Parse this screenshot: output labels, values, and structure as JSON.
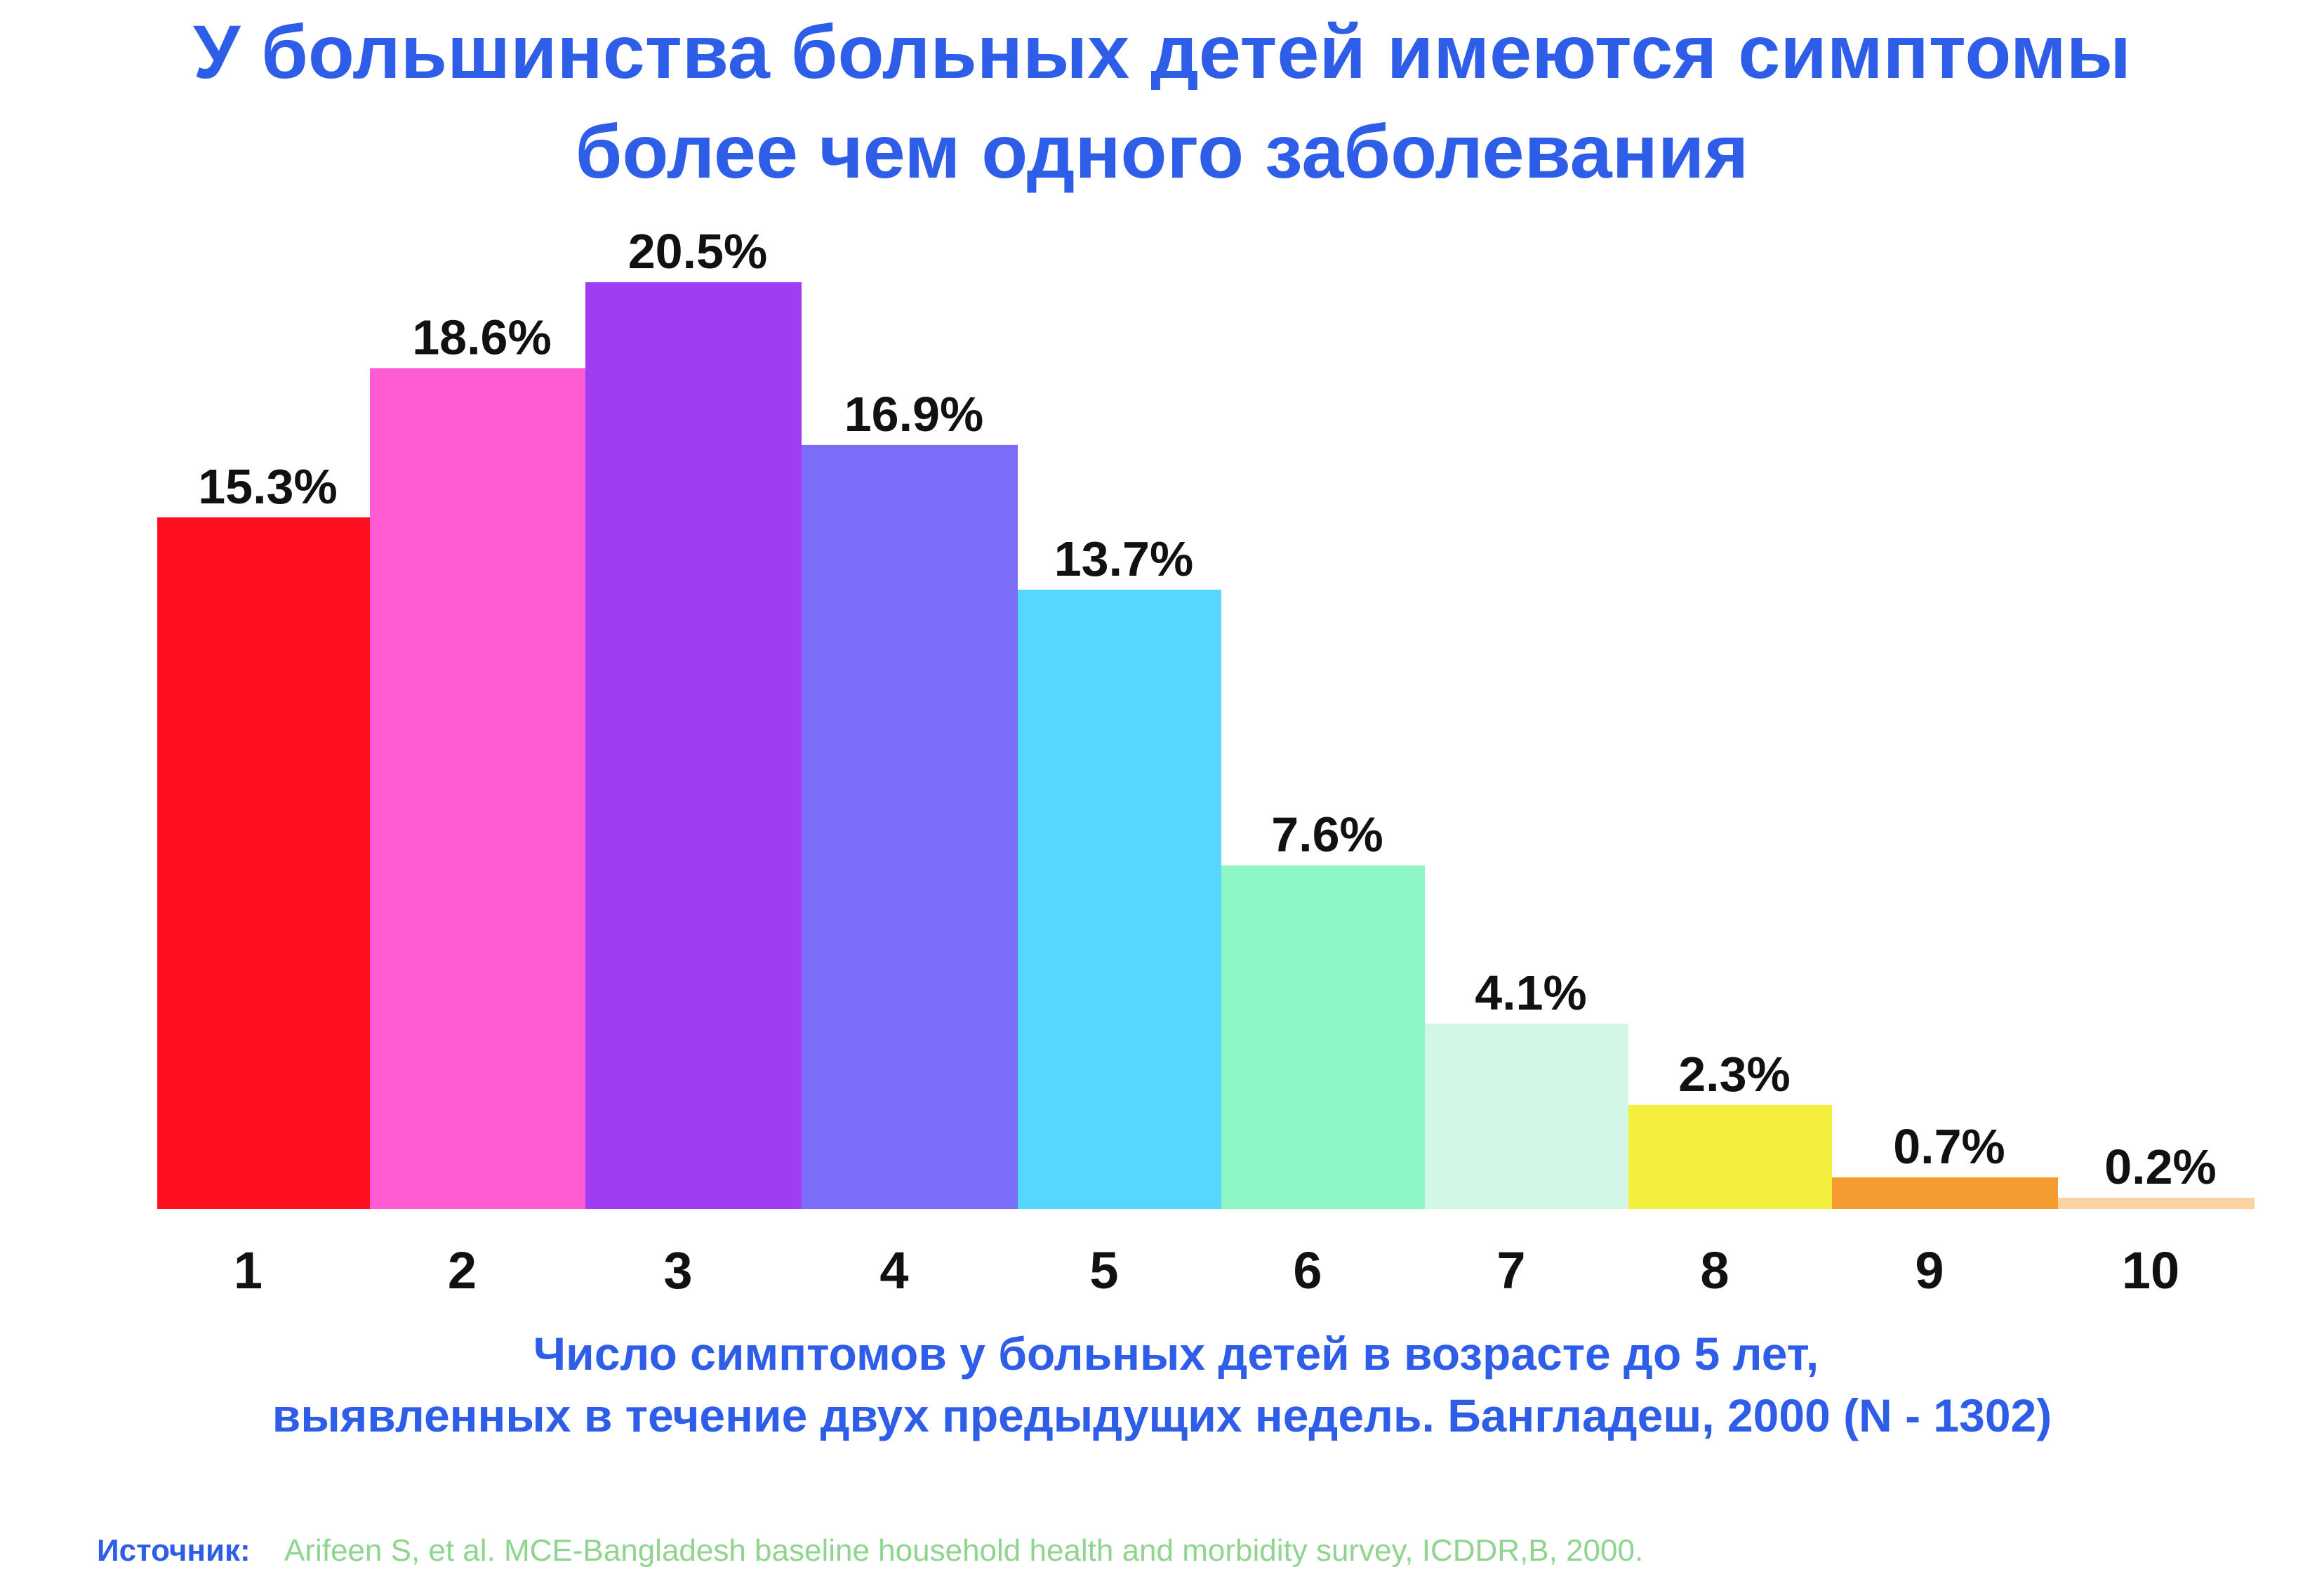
{
  "chart_data": {
    "type": "bar",
    "title": "У большинства больных детей имеются симптомы более чем одного заболевания",
    "title_lines": [
      "У большинства больных детей имеются симптомы",
      "более чем одного заболевания"
    ],
    "categories": [
      "1",
      "2",
      "3",
      "4",
      "5",
      "6",
      "7",
      "8",
      "9",
      "10"
    ],
    "values": [
      15.3,
      18.6,
      20.5,
      16.9,
      13.7,
      7.6,
      4.1,
      2.3,
      0.7,
      0.2
    ],
    "value_labels": [
      "15.3%",
      "18.6%",
      "20.5%",
      "16.9%",
      "13.7%",
      "7.6%",
      "4.1%",
      "2.3%",
      "0.7%",
      "0.2%"
    ],
    "colors": [
      "#ff0f1f",
      "#ff5bd2",
      "#a03cf2",
      "#7a6ef8",
      "#57d6ff",
      "#8ff7c6",
      "#d3f7e6",
      "#f3ef3c",
      "#f59b30",
      "#fcd2a3"
    ],
    "xlabel_lines": [
      "Число симптомов у больных детей в возрасте до 5 лет,",
      "выявленных в течение двух предыдущих недель.   Бангладеш, 2000 (N - 1302)"
    ],
    "ylabel": "",
    "ylim": [
      0,
      20.5
    ],
    "grid": false,
    "legend": "none"
  },
  "source": {
    "label": "Источник:",
    "text": "Arifeen S, et al.  MCE-Bangladesh  baseline household health and morbidity survey, ICDDR,B, 2000."
  }
}
